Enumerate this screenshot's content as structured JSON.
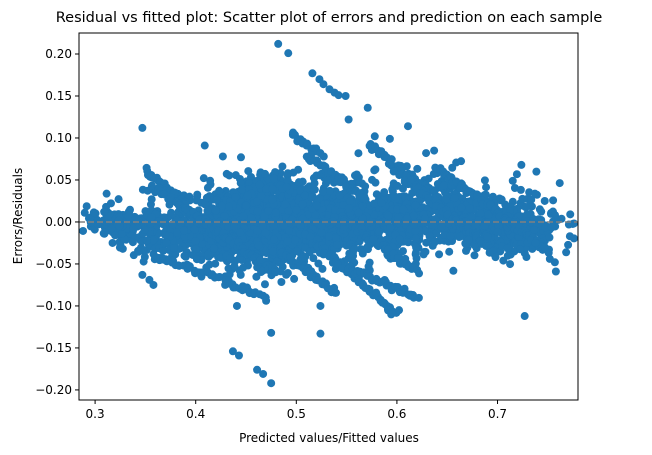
{
  "chart_data": {
    "type": "scatter",
    "title": "Residual vs fitted plot: Scatter plot of errors and prediction on each sample",
    "xlabel": "Predicted values/Fitted values",
    "ylabel": "Errors/Residuals",
    "xlim": [
      0.284,
      0.78
    ],
    "ylim": [
      -0.212,
      0.225
    ],
    "x_ticks": [
      0.3,
      0.4,
      0.5,
      0.6,
      0.7
    ],
    "x_tick_labels": [
      "0.3",
      "0.4",
      "0.5",
      "0.6",
      "0.7"
    ],
    "y_ticks": [
      -0.2,
      -0.15,
      -0.1,
      -0.05,
      0.0,
      0.05,
      0.1,
      0.15,
      0.2
    ],
    "y_tick_labels": [
      "−0.20",
      "−0.15",
      "−0.10",
      "−0.05",
      "0.00",
      "0.05",
      "0.10",
      "0.15",
      "0.20"
    ],
    "reference_line": {
      "y": 0,
      "style": "dashed",
      "color": "#808080"
    },
    "marker_color": "#1f77b4",
    "grid": false,
    "legend": "none",
    "outliers": [
      [
        0.482,
        0.212
      ],
      [
        0.492,
        0.201
      ],
      [
        0.516,
        0.177
      ],
      [
        0.523,
        0.17
      ],
      [
        0.527,
        0.164
      ],
      [
        0.533,
        0.158
      ],
      [
        0.538,
        0.154
      ],
      [
        0.542,
        0.151
      ],
      [
        0.549,
        0.15
      ],
      [
        0.571,
        0.136
      ],
      [
        0.552,
        0.122
      ],
      [
        0.611,
        0.114
      ],
      [
        0.347,
        0.112
      ],
      [
        0.409,
        0.091
      ],
      [
        0.427,
        0.078
      ],
      [
        0.445,
        0.077
      ],
      [
        0.578,
        0.102
      ],
      [
        0.593,
        0.099
      ],
      [
        0.637,
        0.085
      ],
      [
        0.629,
        0.082
      ],
      [
        0.727,
        -0.112
      ],
      [
        0.441,
        -0.1
      ],
      [
        0.524,
        -0.1
      ],
      [
        0.475,
        -0.132
      ],
      [
        0.524,
        -0.133
      ],
      [
        0.437,
        -0.154
      ],
      [
        0.443,
        -0.159
      ],
      [
        0.461,
        -0.176
      ],
      [
        0.467,
        -0.181
      ],
      [
        0.475,
        -0.192
      ],
      [
        0.347,
        -0.063
      ],
      [
        0.354,
        -0.069
      ],
      [
        0.358,
        -0.075
      ],
      [
        0.758,
        -0.059
      ],
      [
        0.757,
        -0.048
      ],
      [
        0.752,
        -0.044
      ],
      [
        0.747,
        -0.03
      ],
      [
        0.738,
        -0.025
      ],
      [
        0.309,
        0.012
      ],
      [
        0.338,
        -0.008
      ]
    ],
    "bands": [
      {
        "x0": 0.35,
        "x1": 0.43,
        "y0": 0.063,
        "y1": -0.025,
        "n": 70
      },
      {
        "x0": 0.355,
        "x1": 0.48,
        "y0": 0.045,
        "y1": -0.06,
        "n": 90
      },
      {
        "x0": 0.36,
        "x1": 0.47,
        "y0": -0.04,
        "y1": -0.09,
        "n": 50
      },
      {
        "x0": 0.495,
        "x1": 0.525,
        "y0": 0.104,
        "y1": 0.08,
        "n": 18
      },
      {
        "x0": 0.51,
        "x1": 0.565,
        "y0": 0.08,
        "y1": 0.03,
        "n": 35
      },
      {
        "x0": 0.573,
        "x1": 0.64,
        "y0": 0.09,
        "y1": 0.03,
        "n": 45
      },
      {
        "x0": 0.545,
        "x1": 0.62,
        "y0": 0.005,
        "y1": -0.06,
        "n": 45
      },
      {
        "x0": 0.51,
        "x1": 0.6,
        "y0": -0.015,
        "y1": -0.11,
        "n": 65
      },
      {
        "x0": 0.54,
        "x1": 0.62,
        "y0": -0.05,
        "y1": -0.09,
        "n": 45
      },
      {
        "x0": 0.48,
        "x1": 0.54,
        "y0": -0.03,
        "y1": -0.085,
        "n": 40
      },
      {
        "x0": 0.64,
        "x1": 0.75,
        "y0": 0.065,
        "y1": -0.035,
        "n": 80
      },
      {
        "x0": 0.6,
        "x1": 0.7,
        "y0": 0.06,
        "y1": -0.04,
        "n": 60
      }
    ],
    "clouds": [
      {
        "cx": 0.52,
        "cy": 0.0,
        "sx": 0.08,
        "sy": 0.02,
        "n": 1100
      },
      {
        "cx": 0.64,
        "cy": 0.01,
        "sx": 0.05,
        "sy": 0.022,
        "n": 500
      },
      {
        "cx": 0.4,
        "cy": -0.015,
        "sx": 0.04,
        "sy": 0.015,
        "n": 350
      },
      {
        "cx": 0.33,
        "cy": -0.003,
        "sx": 0.015,
        "sy": 0.008,
        "n": 120
      },
      {
        "cx": 0.72,
        "cy": -0.01,
        "sx": 0.025,
        "sy": 0.013,
        "n": 200
      },
      {
        "cx": 0.48,
        "cy": 0.03,
        "sx": 0.03,
        "sy": 0.015,
        "n": 250
      },
      {
        "cx": 0.47,
        "cy": -0.035,
        "sx": 0.03,
        "sy": 0.014,
        "n": 200
      }
    ]
  }
}
